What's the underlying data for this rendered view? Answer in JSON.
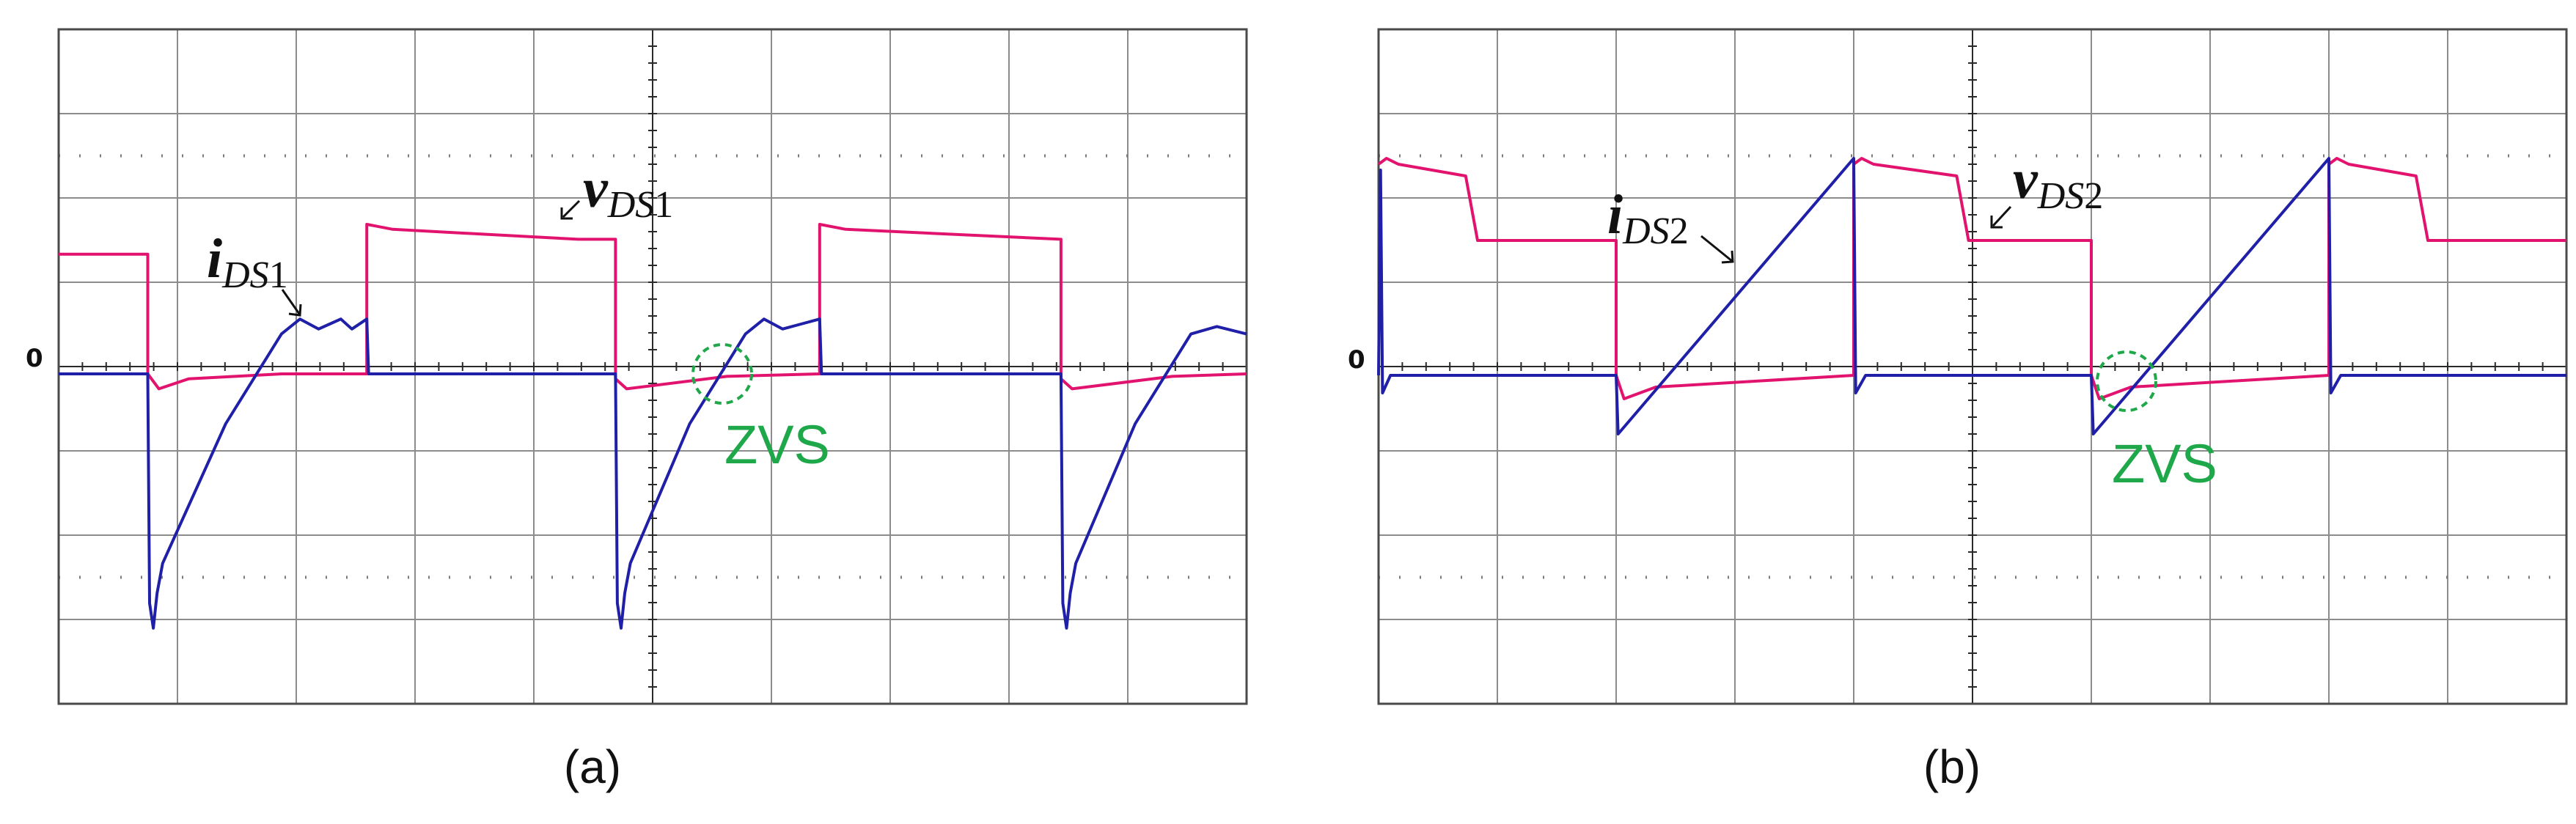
{
  "chart_data": [
    {
      "type": "line",
      "panel_caption": "(a)",
      "zero_marker": "0",
      "grid_divisions": {
        "x": 10,
        "y": 8
      },
      "grid": true,
      "series": [
        {
          "signal": "v_DS1",
          "label_main": "v",
          "label_sub": "DS",
          "label_num": "1",
          "color": "#e2136e",
          "points": [
            [
              0,
              2.4
            ],
            [
              2.4,
              2.4
            ],
            [
              2.4,
              0
            ],
            [
              2.7,
              -0.3
            ],
            [
              3.5,
              -0.1
            ],
            [
              6,
              0
            ],
            [
              8.3,
              0
            ],
            [
              8.3,
              3.0
            ],
            [
              9,
              2.9
            ],
            [
              14,
              2.7
            ],
            [
              15,
              2.7
            ],
            [
              15,
              -0.1
            ],
            [
              15.3,
              -0.3
            ],
            [
              18,
              -0.05
            ],
            [
              20.5,
              0
            ],
            [
              20.5,
              3.0
            ],
            [
              21.2,
              2.9
            ],
            [
              27,
              2.7
            ],
            [
              27,
              -0.1
            ],
            [
              27.3,
              -0.3
            ],
            [
              30,
              -0.05
            ],
            [
              32,
              0
            ]
          ]
        },
        {
          "signal": "i_DS1",
          "label_main": "i",
          "label_sub": "DS",
          "label_num": "1",
          "color": "#1f1fa8",
          "points": [
            [
              0,
              0
            ],
            [
              2.4,
              0
            ],
            [
              2.45,
              -4.6
            ],
            [
              2.55,
              -5.1
            ],
            [
              2.65,
              -4.4
            ],
            [
              2.8,
              -3.8
            ],
            [
              4.5,
              -1.0
            ],
            [
              6,
              0.8
            ],
            [
              6.5,
              1.1
            ],
            [
              7,
              0.9
            ],
            [
              7.3,
              1.0
            ],
            [
              7.6,
              1.1
            ],
            [
              7.9,
              0.9
            ],
            [
              8.3,
              1.1
            ],
            [
              8.35,
              0
            ],
            [
              10,
              0
            ],
            [
              15,
              0
            ],
            [
              15.05,
              -4.6
            ],
            [
              15.15,
              -5.1
            ],
            [
              15.25,
              -4.4
            ],
            [
              15.4,
              -3.8
            ],
            [
              17,
              -1.0
            ],
            [
              18.5,
              0.8
            ],
            [
              19,
              1.1
            ],
            [
              19.5,
              0.9
            ],
            [
              20,
              1.0
            ],
            [
              20.5,
              1.1
            ],
            [
              20.55,
              0
            ],
            [
              22,
              0
            ],
            [
              27,
              0
            ],
            [
              27.05,
              -4.6
            ],
            [
              27.15,
              -5.1
            ],
            [
              27.25,
              -4.4
            ],
            [
              27.4,
              -3.8
            ],
            [
              29,
              -1.0
            ],
            [
              30.5,
              0.8
            ],
            [
              31.2,
              0.95
            ],
            [
              32,
              0.8
            ]
          ]
        }
      ],
      "annotation": "ZVS"
    },
    {
      "type": "line",
      "panel_caption": "(b)",
      "zero_marker": "0",
      "grid_divisions": {
        "x": 10,
        "y": 8
      },
      "grid": true,
      "series": [
        {
          "signal": "v_DS2",
          "label_main": "v",
          "label_sub": "DS",
          "label_num": "2",
          "color": "#e2136e",
          "points": [
            [
              0,
              3.6
            ],
            [
              0.2,
              3.7
            ],
            [
              0.5,
              3.6
            ],
            [
              2.2,
              3.4
            ],
            [
              2.5,
              2.3
            ],
            [
              6,
              2.3
            ],
            [
              6,
              0
            ],
            [
              6.2,
              -0.4
            ],
            [
              7,
              -0.2
            ],
            [
              12,
              0
            ],
            [
              12,
              3.6
            ],
            [
              12.2,
              3.7
            ],
            [
              12.5,
              3.6
            ],
            [
              14.6,
              3.4
            ],
            [
              14.9,
              2.3
            ],
            [
              18,
              2.3
            ],
            [
              18,
              0
            ],
            [
              18.2,
              -0.4
            ],
            [
              19,
              -0.2
            ],
            [
              24,
              0
            ],
            [
              24,
              3.6
            ],
            [
              24.2,
              3.7
            ],
            [
              24.5,
              3.6
            ],
            [
              26.2,
              3.4
            ],
            [
              26.5,
              2.3
            ],
            [
              30,
              2.3
            ]
          ]
        },
        {
          "signal": "i_DS2",
          "label_main": "i",
          "label_sub": "DS",
          "label_num": "2",
          "color": "#1f1fa8",
          "points": [
            [
              0,
              0
            ],
            [
              0.05,
              3.5
            ],
            [
              0.1,
              -0.3
            ],
            [
              0.3,
              0
            ],
            [
              6,
              0
            ],
            [
              6.05,
              -1.0
            ],
            [
              12,
              3.7
            ],
            [
              12.05,
              -0.3
            ],
            [
              12.3,
              0
            ],
            [
              18,
              0
            ],
            [
              18.05,
              -1.0
            ],
            [
              24,
              3.7
            ],
            [
              24.05,
              -0.3
            ],
            [
              24.3,
              0
            ],
            [
              30,
              0
            ]
          ]
        }
      ],
      "annotation": "ZVS"
    }
  ]
}
